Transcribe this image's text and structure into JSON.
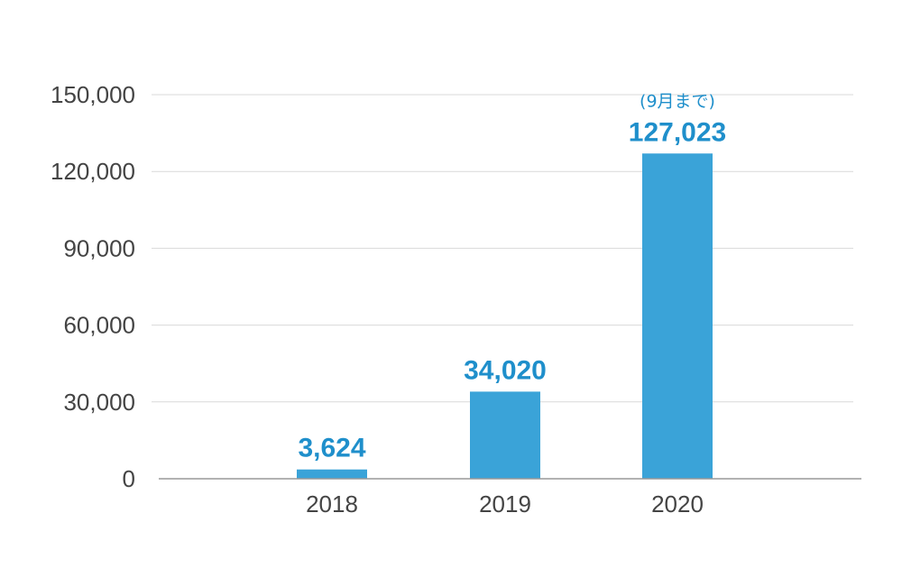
{
  "chart_data": {
    "type": "bar",
    "categories": [
      "2018",
      "2019",
      "2020"
    ],
    "values": [
      3624,
      34020,
      127023
    ],
    "data_labels": [
      "3,624",
      "34,020",
      "127,023"
    ],
    "annotations": [
      {
        "category": "2020",
        "text": "(9月まで)"
      }
    ],
    "title": "",
    "xlabel": "",
    "ylabel": "",
    "ylim": [
      0,
      150000
    ],
    "yticks": [
      0,
      30000,
      60000,
      90000,
      120000,
      150000
    ],
    "ytick_labels": [
      "0",
      "30,000",
      "60,000",
      "90,000",
      "120,000",
      "150,000"
    ],
    "grid": true,
    "legend": "none",
    "colors": {
      "bar": "#3aa3d8",
      "value_label": "#1f8fcb",
      "grid": "#d9d9d9",
      "axis": "#999999",
      "tick_text": "#444444"
    }
  }
}
